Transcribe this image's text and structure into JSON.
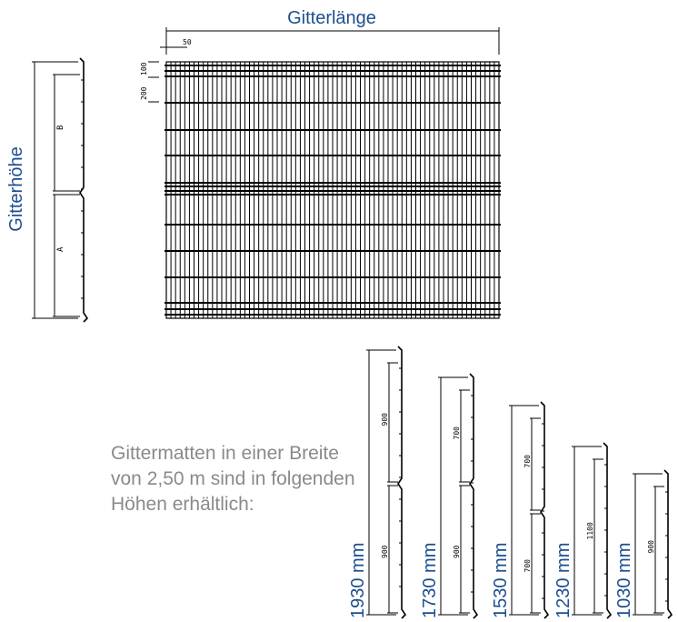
{
  "title_length": "Gitterlänge",
  "title_height": "Gitterhöhe",
  "dim_top": "50",
  "dim_spacing_small": "100",
  "dim_spacing_large": "200",
  "segment_a": "A",
  "segment_b": "B",
  "description": {
    "line1": "Gittermatten in einer Breite",
    "line2": "von 2,50 m sind in folgenden",
    "line3": "Höhen erhältlich:"
  },
  "variants": [
    {
      "height_label": "1930 mm",
      "segments": [
        "900",
        "900"
      ]
    },
    {
      "height_label": "1730 mm",
      "segments": [
        "700",
        "900"
      ]
    },
    {
      "height_label": "1530 mm",
      "segments": [
        "700",
        "700"
      ]
    },
    {
      "height_label": "1230 mm",
      "segments": [
        "1100"
      ]
    },
    {
      "height_label": "1030 mm",
      "segments": [
        "900"
      ]
    }
  ],
  "colors": {
    "label_blue": "#1d4f8f",
    "text_gray": "#8a8a8a",
    "line": "#000000"
  }
}
